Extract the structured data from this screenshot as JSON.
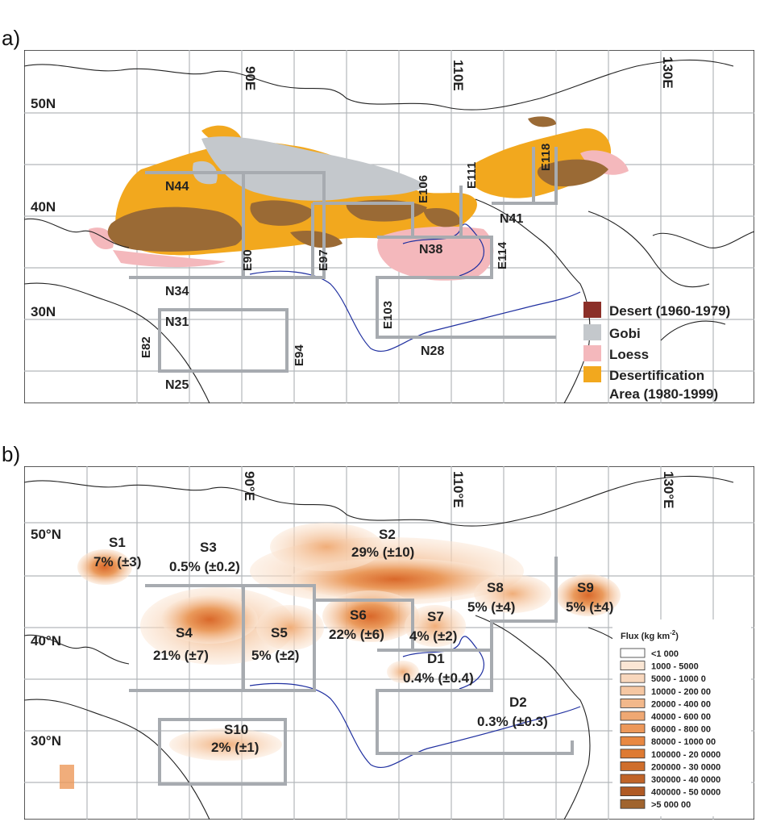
{
  "panel_a": {
    "label": "a)",
    "lon_labels": [
      "90E",
      "110E",
      "130E"
    ],
    "lat_labels": [
      "50N",
      "40N",
      "30N"
    ],
    "boundary_labels": [
      "N44",
      "N34",
      "N31",
      "N25",
      "N41",
      "N38",
      "N28",
      "E90",
      "E97",
      "E106",
      "E111",
      "E118",
      "E103",
      "E114",
      "E82",
      "E94"
    ],
    "legend": [
      {
        "label": "Desert (1960-1979)",
        "color": "#8b2f28"
      },
      {
        "label": "Gobi",
        "color": "#c4c8cc"
      },
      {
        "label": "Loess",
        "color": "#f4b8bc"
      },
      {
        "label": "Desertification",
        "color": "#f2a81e"
      },
      {
        "label": "Area (1980-1999)",
        "color": ""
      }
    ]
  },
  "panel_b": {
    "label": "b)",
    "lon_labels": [
      "90°E",
      "110°E",
      "130°E"
    ],
    "lat_labels": [
      "50°N",
      "40°N",
      "30°N"
    ],
    "regions": [
      {
        "name": "S1",
        "share": "7% (±3)"
      },
      {
        "name": "S2",
        "share": "29% (±10)"
      },
      {
        "name": "S3",
        "share": "0.5% (±0.2)"
      },
      {
        "name": "S4",
        "share": "21% (±7)"
      },
      {
        "name": "S5",
        "share": "5% (±2)"
      },
      {
        "name": "S6",
        "share": "22% (±6)"
      },
      {
        "name": "S7",
        "share": "4% (±2)"
      },
      {
        "name": "S8",
        "share": "5% (±4)"
      },
      {
        "name": "S9",
        "share": "5% (±4)"
      },
      {
        "name": "S10",
        "share": "2% (±1)"
      },
      {
        "name": "D1",
        "share": "0.4% (±0.4)"
      },
      {
        "name": "D2",
        "share": "0.3% (±0.3)"
      }
    ],
    "flux_legend": {
      "title": "Flux (kg km",
      "title_sup": "-2",
      "title_close": ")",
      "classes": [
        {
          "label": "<1 000",
          "color": "#ffffff"
        },
        {
          "label": "1000 - 5000",
          "color": "#fbe6d4"
        },
        {
          "label": "5000 - 1000 0",
          "color": "#f8d7bd"
        },
        {
          "label": "10000 - 200 00",
          "color": "#f5c7a3"
        },
        {
          "label": "20000 - 400 00",
          "color": "#f2b88b"
        },
        {
          "label": "40000 - 600 00",
          "color": "#efa873"
        },
        {
          "label": "60000 - 800 00",
          "color": "#ec985a"
        },
        {
          "label": "80000 - 1000 00",
          "color": "#e88842"
        },
        {
          "label": "100000 - 20 0000",
          "color": "#de7a32"
        },
        {
          "label": "200000 - 30 0000",
          "color": "#cf6e2c"
        },
        {
          "label": "300000 - 40 0000",
          "color": "#c06428"
        },
        {
          "label": "400000 - 50 0000",
          "color": "#b05a24"
        },
        {
          "label": ">5 000 00",
          "color": "#a0642e"
        }
      ]
    }
  }
}
